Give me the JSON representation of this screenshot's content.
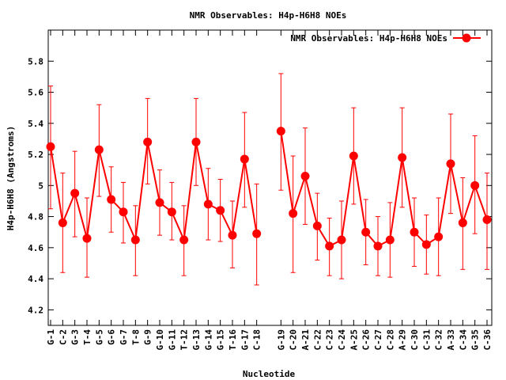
{
  "chart_data": {
    "type": "line",
    "title": "NMR Observables: H4p-H6H8 NOEs",
    "xlabel": "Nucleotide",
    "ylabel": "H4p-H6H8 (Angstroms)",
    "ylim": [
      4.1,
      6.0
    ],
    "yticks": [
      "4.2",
      "4.4",
      "4.6",
      "4.8",
      "5",
      "5.2",
      "5.4",
      "5.6",
      "5.8"
    ],
    "grid": false,
    "legend": "top-right",
    "color": "#ff0000",
    "series": [
      {
        "name": "NMR Observables: H4p-H6H8 NOEs",
        "segments": [
          {
            "categories": [
              "G-1",
              "C-2",
              "G-3",
              "T-4",
              "G-5",
              "G-6",
              "G-7",
              "T-8",
              "G-9",
              "G-10",
              "G-11",
              "T-12",
              "G-13",
              "G-14",
              "G-15",
              "T-16",
              "G-17",
              "C-18"
            ],
            "values": [
              5.25,
              4.76,
              4.95,
              4.66,
              5.23,
              4.91,
              4.83,
              4.65,
              5.28,
              4.89,
              4.83,
              4.65,
              5.28,
              4.88,
              4.84,
              4.68,
              5.17,
              4.69
            ],
            "err_low": [
              4.85,
              4.44,
              4.67,
              4.41,
              4.93,
              4.7,
              4.63,
              4.42,
              5.01,
              4.68,
              4.65,
              4.42,
              5.0,
              4.65,
              4.64,
              4.47,
              4.86,
              4.36
            ],
            "err_high": [
              5.64,
              5.08,
              5.22,
              4.92,
              5.52,
              5.12,
              5.02,
              4.87,
              5.56,
              5.1,
              5.02,
              4.87,
              5.56,
              5.11,
              5.04,
              4.9,
              5.47,
              5.01
            ]
          },
          {
            "categories": [
              "G-19",
              "C-20",
              "A-21",
              "C-22",
              "C-23",
              "C-24",
              "A-25",
              "C-26",
              "C-27",
              "C-28",
              "A-29",
              "C-30",
              "C-31",
              "C-32",
              "A-33",
              "C-34",
              "G-35",
              "C-36"
            ],
            "values": [
              5.35,
              4.82,
              5.06,
              4.74,
              4.61,
              4.65,
              5.19,
              4.7,
              4.61,
              4.65,
              5.18,
              4.7,
              4.62,
              4.67,
              5.14,
              4.76,
              5.0,
              4.78
            ],
            "err_low": [
              4.97,
              4.44,
              4.75,
              4.52,
              4.42,
              4.4,
              4.88,
              4.49,
              4.42,
              4.41,
              4.86,
              4.48,
              4.43,
              4.42,
              4.82,
              4.46,
              4.69,
              4.46
            ],
            "err_high": [
              5.72,
              5.19,
              5.37,
              4.95,
              4.79,
              4.9,
              5.5,
              4.91,
              4.8,
              4.89,
              5.5,
              4.92,
              4.81,
              4.92,
              5.46,
              5.05,
              5.32,
              5.08
            ]
          }
        ]
      }
    ]
  }
}
